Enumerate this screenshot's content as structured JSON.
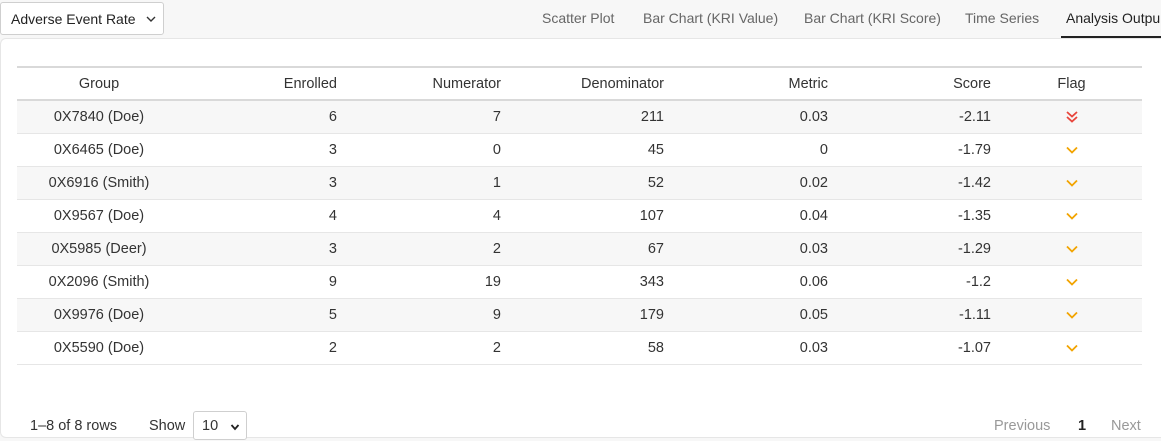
{
  "metric_selector": {
    "value": "Adverse Event Rate",
    "icon": "chevron-down-icon"
  },
  "tabs": [
    {
      "label": "Scatter Plot",
      "active": false
    },
    {
      "label": "Bar Chart (KRI Value)",
      "active": false
    },
    {
      "label": "Bar Chart (KRI Score)",
      "active": false
    },
    {
      "label": "Time Series",
      "active": false
    },
    {
      "label": "Analysis Outpu",
      "active": true
    }
  ],
  "table": {
    "columns": [
      "Group",
      "Enrolled",
      "Numerator",
      "Denominator",
      "Metric",
      "Score",
      "Flag"
    ],
    "rows": [
      {
        "group": "0X7840 (Doe)",
        "enrolled": "6",
        "numerator": "7",
        "denominator": "211",
        "metric": "0.03",
        "score": "-2.11",
        "flag": "double-chevron-down-icon"
      },
      {
        "group": "0X6465 (Doe)",
        "enrolled": "3",
        "numerator": "0",
        "denominator": "45",
        "metric": "0",
        "score": "-1.79",
        "flag": "chevron-down-icon"
      },
      {
        "group": "0X6916 (Smith)",
        "enrolled": "3",
        "numerator": "1",
        "denominator": "52",
        "metric": "0.02",
        "score": "-1.42",
        "flag": "chevron-down-icon"
      },
      {
        "group": "0X9567 (Doe)",
        "enrolled": "4",
        "numerator": "4",
        "denominator": "107",
        "metric": "0.04",
        "score": "-1.35",
        "flag": "chevron-down-icon"
      },
      {
        "group": "0X5985 (Deer)",
        "enrolled": "3",
        "numerator": "2",
        "denominator": "67",
        "metric": "0.03",
        "score": "-1.29",
        "flag": "chevron-down-icon"
      },
      {
        "group": "0X2096 (Smith)",
        "enrolled": "9",
        "numerator": "19",
        "denominator": "343",
        "metric": "0.06",
        "score": "-1.2",
        "flag": "chevron-down-icon"
      },
      {
        "group": "0X9976 (Doe)",
        "enrolled": "5",
        "numerator": "9",
        "denominator": "179",
        "metric": "0.05",
        "score": "-1.11",
        "flag": "chevron-down-icon"
      },
      {
        "group": "0X5590 (Doe)",
        "enrolled": "2",
        "numerator": "2",
        "denominator": "58",
        "metric": "0.03",
        "score": "-1.07",
        "flag": "chevron-down-icon"
      }
    ]
  },
  "footer": {
    "rows_info": "1–8 of 8 rows",
    "show_label": "Show",
    "page_size": "10",
    "prev_label": "Previous",
    "current_page": "1",
    "next_label": "Next"
  },
  "colors": {
    "flag_red": "#e8453c",
    "flag_amber": "#f2a400",
    "active_tab": "#222222"
  }
}
